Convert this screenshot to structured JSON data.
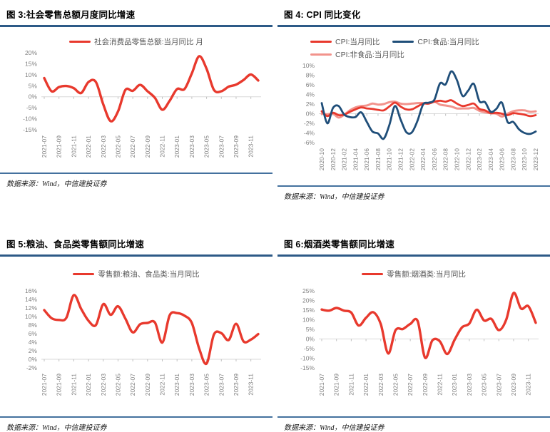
{
  "colors": {
    "accent_red": "#E8392D",
    "accent_navy": "#1F4E79",
    "accent_pink": "#F2938C",
    "title_rule": "#2D5A87",
    "footer_rule": "#44719E",
    "axis_label": "#7f7f7f",
    "zero_line": "#D9D9D9",
    "tick_mark": "#BFBFBF",
    "legend_text": "#595959"
  },
  "chart_data": [
    {
      "id": "fig3",
      "type": "line",
      "title": "图 3:社会零售总额月度同比增速",
      "source_note": "数据来源：Wind，中信建投证券",
      "legend_position": "top",
      "grid": "zero-line-only",
      "y_unit": "%",
      "ylim": [
        -15,
        20
      ],
      "y_ticks": [
        20,
        15,
        10,
        5,
        0,
        -5,
        -10,
        -15
      ],
      "x_tick_step": 2,
      "x_tick_labels": [
        "2021-07",
        "2021-09",
        "2021-11",
        "2022-01",
        "2022-03",
        "2022-05",
        "2022-07",
        "2022-09",
        "2022-11",
        "2023-01",
        "2023-03",
        "2023-05",
        "2023-07",
        "2023-09",
        "2023-11"
      ],
      "x_months": [
        "2021-07",
        "2021-08",
        "2021-09",
        "2021-10",
        "2021-11",
        "2021-12",
        "2022-01",
        "2022-02",
        "2022-03",
        "2022-04",
        "2022-05",
        "2022-06",
        "2022-07",
        "2022-08",
        "2022-09",
        "2022-10",
        "2022-11",
        "2022-12",
        "2023-01",
        "2023-02",
        "2023-03",
        "2023-04",
        "2023-05",
        "2023-06",
        "2023-07",
        "2023-08",
        "2023-09",
        "2023-10",
        "2023-11",
        "2023-12"
      ],
      "series": [
        {
          "name": "社会消费品零售总额:当月同比 月",
          "color": "#E8392D",
          "width": 3.4,
          "values": [
            8.5,
            2.5,
            4.4,
            4.9,
            3.9,
            1.7,
            6.7,
            6.7,
            -3.5,
            -11.1,
            -6.7,
            3.1,
            2.7,
            5.4,
            2.5,
            -0.5,
            -5.9,
            -1.8,
            3.5,
            3.5,
            10.6,
            18.4,
            12.7,
            3.1,
            2.5,
            4.6,
            5.5,
            7.6,
            10.1,
            7.4
          ]
        }
      ]
    },
    {
      "id": "fig4",
      "type": "line",
      "title": "图 4: CPI 同比变化",
      "source_note": "数据来源：Wind，中信建投证券",
      "legend_position": "top",
      "grid": "zero-line-only",
      "y_unit": "%",
      "ylim": [
        -6,
        10
      ],
      "y_ticks": [
        10,
        8,
        6,
        4,
        2,
        0,
        -2,
        -4,
        -6
      ],
      "x_tick_step": 2,
      "x_tick_labels": [
        "2020-10",
        "2020-12",
        "2021-02",
        "2021-04",
        "2021-06",
        "2021-08",
        "2021-10",
        "2021-12",
        "2022-02",
        "2022-04",
        "2022-06",
        "2022-08",
        "2022-10",
        "2022-12",
        "2023-02",
        "2023-04",
        "2023-06",
        "2023-08",
        "2023-10",
        "2023-12"
      ],
      "x_months": [
        "2020-10",
        "2020-11",
        "2020-12",
        "2021-01",
        "2021-02",
        "2021-03",
        "2021-04",
        "2021-05",
        "2021-06",
        "2021-07",
        "2021-08",
        "2021-09",
        "2021-10",
        "2021-11",
        "2021-12",
        "2022-01",
        "2022-02",
        "2022-03",
        "2022-04",
        "2022-05",
        "2022-06",
        "2022-07",
        "2022-08",
        "2022-09",
        "2022-10",
        "2022-11",
        "2022-12",
        "2023-01",
        "2023-02",
        "2023-03",
        "2023-04",
        "2023-05",
        "2023-06",
        "2023-07",
        "2023-08",
        "2023-09",
        "2023-10",
        "2023-11",
        "2023-12"
      ],
      "draw_order": [
        2,
        0,
        1
      ],
      "series": [
        {
          "name": "CPI:当月同比",
          "color": "#E8392D",
          "width": 2.8,
          "values": [
            0.5,
            -0.5,
            0.2,
            -0.3,
            -0.2,
            0.4,
            0.9,
            1.3,
            1.1,
            1.0,
            0.8,
            0.7,
            1.5,
            2.3,
            1.5,
            0.9,
            0.9,
            1.5,
            2.1,
            2.1,
            2.5,
            2.7,
            2.5,
            2.8,
            2.1,
            1.6,
            1.8,
            2.1,
            1.0,
            0.7,
            0.1,
            0.2,
            0.0,
            -0.3,
            0.1,
            0.0,
            -0.2,
            -0.5,
            -0.3
          ]
        },
        {
          "name": "CPI:食品:当月同比",
          "color": "#1F4E79",
          "width": 2.8,
          "values": [
            2.2,
            -2.0,
            1.2,
            1.6,
            -0.2,
            -0.7,
            -0.7,
            0.3,
            -1.7,
            -3.7,
            -4.1,
            -5.2,
            -2.4,
            1.6,
            -1.2,
            -3.8,
            -3.9,
            -1.5,
            1.9,
            2.3,
            2.9,
            6.3,
            6.1,
            8.8,
            7.0,
            3.7,
            4.8,
            6.2,
            2.6,
            2.4,
            0.4,
            1.0,
            2.3,
            -1.7,
            -1.7,
            -3.2,
            -4.0,
            -4.2,
            -3.7
          ]
        },
        {
          "name": "CPI:非食品:当月同比",
          "color": "#F2938C",
          "width": 3.0,
          "values": [
            0.0,
            -0.1,
            0.0,
            -0.8,
            -0.2,
            0.7,
            1.3,
            1.6,
            1.7,
            2.1,
            1.9,
            2.0,
            2.4,
            2.5,
            2.1,
            2.0,
            2.1,
            2.2,
            2.2,
            2.1,
            2.5,
            1.9,
            1.7,
            1.5,
            1.1,
            1.1,
            1.1,
            1.2,
            0.6,
            0.3,
            0.1,
            0.0,
            -0.6,
            0.0,
            0.5,
            0.7,
            0.7,
            0.4,
            0.5
          ]
        }
      ]
    },
    {
      "id": "fig5",
      "type": "line",
      "title": "图 5:粮油、食品类零售额同比增速",
      "source_note": "数据来源：Wind，中信建投证券",
      "legend_position": "top",
      "grid": "zero-line-only",
      "y_unit": "%",
      "ylim": [
        -2,
        16
      ],
      "y_ticks": [
        16,
        14,
        12,
        10,
        8,
        6,
        4,
        2,
        0,
        -2
      ],
      "x_tick_step": 2,
      "x_tick_labels": [
        "2021-07",
        "2021-09",
        "2021-11",
        "2022-01",
        "2022-03",
        "2022-05",
        "2022-07",
        "2022-09",
        "2022-11",
        "2023-01",
        "2023-03",
        "2023-05",
        "2023-07",
        "2023-09",
        "2023-11"
      ],
      "x_months": [
        "2021-07",
        "2021-08",
        "2021-09",
        "2021-10",
        "2021-11",
        "2021-12",
        "2022-01",
        "2022-02",
        "2022-03",
        "2022-04",
        "2022-05",
        "2022-06",
        "2022-07",
        "2022-08",
        "2022-09",
        "2022-10",
        "2022-11",
        "2022-12",
        "2023-01",
        "2023-02",
        "2023-03",
        "2023-04",
        "2023-05",
        "2023-06",
        "2023-07",
        "2023-08",
        "2023-09",
        "2023-10",
        "2023-11",
        "2023-12"
      ],
      "series": [
        {
          "name": "零售额:粮油、食品类:当月同比",
          "color": "#E8392D",
          "width": 3.4,
          "values": [
            11.5,
            9.6,
            9.2,
            9.7,
            15.0,
            11.8,
            9.0,
            8.0,
            12.9,
            10.4,
            12.4,
            9.5,
            6.3,
            8.2,
            8.5,
            8.6,
            3.9,
            10.3,
            10.8,
            10.2,
            8.5,
            2.5,
            -1.0,
            5.8,
            6.1,
            4.5,
            8.3,
            4.2,
            4.6,
            5.9
          ]
        }
      ]
    },
    {
      "id": "fig6",
      "type": "line",
      "title": "图 6:烟酒类零售额同比增速",
      "source_note": "数据来源：Wind，中信建投证券",
      "legend_position": "top",
      "grid": "zero-line-only",
      "y_unit": "%",
      "ylim": [
        -15,
        25
      ],
      "y_ticks": [
        25,
        20,
        15,
        10,
        5,
        0,
        -5,
        -10,
        -15
      ],
      "x_tick_step": 2,
      "x_tick_labels": [
        "2021-07",
        "2021-09",
        "2021-11",
        "2022-01",
        "2022-03",
        "2022-05",
        "2022-07",
        "2022-09",
        "2022-11",
        "2023-01",
        "2023-03",
        "2023-05",
        "2023-07",
        "2023-09",
        "2023-11"
      ],
      "x_months": [
        "2021-07",
        "2021-08",
        "2021-09",
        "2021-10",
        "2021-11",
        "2021-12",
        "2022-01",
        "2022-02",
        "2022-03",
        "2022-04",
        "2022-05",
        "2022-06",
        "2022-07",
        "2022-08",
        "2022-09",
        "2022-10",
        "2022-11",
        "2022-12",
        "2023-01",
        "2023-02",
        "2023-03",
        "2023-04",
        "2023-05",
        "2023-06",
        "2023-07",
        "2023-08",
        "2023-09",
        "2023-10",
        "2023-11",
        "2023-12"
      ],
      "series": [
        {
          "name": "零售额:烟酒类:当月同比",
          "color": "#E8392D",
          "width": 3.4,
          "values": [
            15.3,
            14.7,
            16.1,
            14.7,
            13.7,
            7.0,
            11.0,
            13.9,
            7.7,
            -7.5,
            4.5,
            5.2,
            7.8,
            9.3,
            -9.7,
            -0.7,
            -1.2,
            -7.8,
            -0.5,
            6.0,
            8.0,
            15.2,
            9.6,
            10.4,
            4.6,
            10.0,
            23.9,
            15.8,
            17.0,
            8.4
          ]
        }
      ]
    }
  ]
}
